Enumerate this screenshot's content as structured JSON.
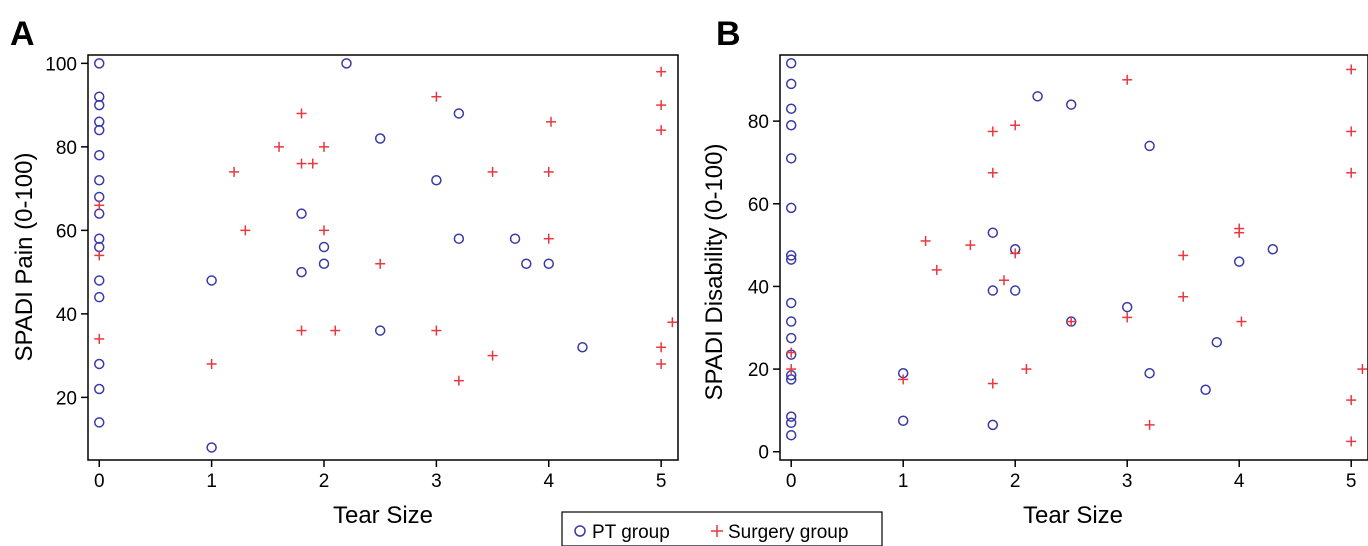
{
  "colors": {
    "pt": "#3a3aa6",
    "surgery": "#e8383d",
    "axis": "#000000"
  },
  "legend": {
    "placement": "bottom-center",
    "items": [
      {
        "label": "PT group",
        "marker": "circle",
        "color": "#3a3aa6"
      },
      {
        "label": "Surgery group",
        "marker": "plus",
        "color": "#e8383d"
      }
    ]
  },
  "chart_data": [
    {
      "panel_label": "A",
      "type": "scatter",
      "xlabel": "Tear Size",
      "ylabel": "SPADI Pain (0-100)",
      "xlim": [
        -0.1,
        5.15
      ],
      "ylim": [
        5,
        102
      ],
      "xticks": [
        0,
        1,
        2,
        3,
        4,
        5
      ],
      "yticks": [
        20,
        40,
        60,
        80,
        100
      ],
      "series": [
        {
          "name": "PT group",
          "marker": "circle",
          "points": [
            [
              0,
              100
            ],
            [
              0,
              92
            ],
            [
              0,
              90
            ],
            [
              0,
              86
            ],
            [
              0,
              84
            ],
            [
              0,
              78
            ],
            [
              0,
              72
            ],
            [
              0,
              68
            ],
            [
              0,
              64
            ],
            [
              0,
              58
            ],
            [
              0,
              56
            ],
            [
              0,
              48
            ],
            [
              0,
              44
            ],
            [
              0,
              28
            ],
            [
              0,
              22
            ],
            [
              0,
              14
            ],
            [
              1,
              48
            ],
            [
              1,
              8
            ],
            [
              1.8,
              64
            ],
            [
              1.8,
              50
            ],
            [
              2,
              56
            ],
            [
              2,
              52
            ],
            [
              2.2,
              100
            ],
            [
              2.5,
              82
            ],
            [
              2.5,
              36
            ],
            [
              3,
              72
            ],
            [
              3.2,
              88
            ],
            [
              3.2,
              58
            ],
            [
              3.7,
              58
            ],
            [
              3.8,
              52
            ],
            [
              4,
              52
            ],
            [
              4.3,
              32
            ]
          ]
        },
        {
          "name": "Surgery group",
          "marker": "plus",
          "points": [
            [
              0,
              66
            ],
            [
              0,
              54
            ],
            [
              0,
              34
            ],
            [
              1,
              28
            ],
            [
              1.2,
              74
            ],
            [
              1.3,
              60
            ],
            [
              1.6,
              80
            ],
            [
              1.8,
              88
            ],
            [
              1.8,
              76
            ],
            [
              1.8,
              36
            ],
            [
              1.9,
              76
            ],
            [
              2,
              80
            ],
            [
              2,
              60
            ],
            [
              2.1,
              36
            ],
            [
              2.5,
              52
            ],
            [
              3,
              92
            ],
            [
              3,
              36
            ],
            [
              3.2,
              24
            ],
            [
              3.5,
              74
            ],
            [
              3.5,
              30
            ],
            [
              4,
              74
            ],
            [
              4,
              58
            ],
            [
              4.02,
              86
            ],
            [
              5,
              98
            ],
            [
              5,
              90
            ],
            [
              5,
              84
            ],
            [
              5,
              32
            ],
            [
              5,
              28
            ],
            [
              5.1,
              38
            ]
          ]
        }
      ]
    },
    {
      "panel_label": "B",
      "type": "scatter",
      "xlabel": "Tear Size",
      "ylabel": "SPADI Disability (0-100)",
      "xlim": [
        -0.1,
        5.15
      ],
      "ylim": [
        -2,
        96
      ],
      "xticks": [
        0,
        1,
        2,
        3,
        4,
        5
      ],
      "yticks": [
        0,
        20,
        40,
        60,
        80
      ],
      "series": [
        {
          "name": "PT group",
          "marker": "circle",
          "points": [
            [
              0,
              94
            ],
            [
              0,
              89
            ],
            [
              0,
              83
            ],
            [
              0,
              79
            ],
            [
              0,
              71
            ],
            [
              0,
              59
            ],
            [
              0,
              47.5
            ],
            [
              0,
              46.5
            ],
            [
              0,
              36
            ],
            [
              0,
              31.5
            ],
            [
              0,
              27.5
            ],
            [
              0,
              23.5
            ],
            [
              0,
              18.5
            ],
            [
              0,
              17.5
            ],
            [
              0,
              8.5
            ],
            [
              0,
              7
            ],
            [
              0,
              4
            ],
            [
              1,
              19
            ],
            [
              1,
              7.5
            ],
            [
              1.8,
              53
            ],
            [
              1.8,
              39
            ],
            [
              1.8,
              6.5
            ],
            [
              2,
              49
            ],
            [
              2,
              39
            ],
            [
              2.2,
              86
            ],
            [
              2.5,
              84
            ],
            [
              2.5,
              31.5
            ],
            [
              3,
              35
            ],
            [
              3.2,
              74
            ],
            [
              3.2,
              19
            ],
            [
              3.7,
              15
            ],
            [
              3.8,
              26.5
            ],
            [
              4,
              46
            ],
            [
              4.3,
              49
            ]
          ]
        },
        {
          "name": "Surgery group",
          "marker": "plus",
          "points": [
            [
              0,
              24
            ],
            [
              0,
              20
            ],
            [
              1,
              17.5
            ],
            [
              1.2,
              51
            ],
            [
              1.3,
              44
            ],
            [
              1.6,
              50
            ],
            [
              1.8,
              77.5
            ],
            [
              1.8,
              67.5
            ],
            [
              1.8,
              16.5
            ],
            [
              1.9,
              41.5
            ],
            [
              2,
              79
            ],
            [
              2,
              48
            ],
            [
              2.1,
              20
            ],
            [
              2.5,
              31.5
            ],
            [
              3,
              90
            ],
            [
              3,
              32.5
            ],
            [
              3.2,
              6.5
            ],
            [
              3.5,
              47.5
            ],
            [
              3.5,
              37.5
            ],
            [
              4,
              54
            ],
            [
              4,
              53
            ],
            [
              4.02,
              31.5
            ],
            [
              5,
              92.5
            ],
            [
              5,
              77.5
            ],
            [
              5,
              67.5
            ],
            [
              5,
              12.5
            ],
            [
              5,
              2.5
            ],
            [
              5.1,
              20
            ]
          ]
        }
      ]
    }
  ]
}
